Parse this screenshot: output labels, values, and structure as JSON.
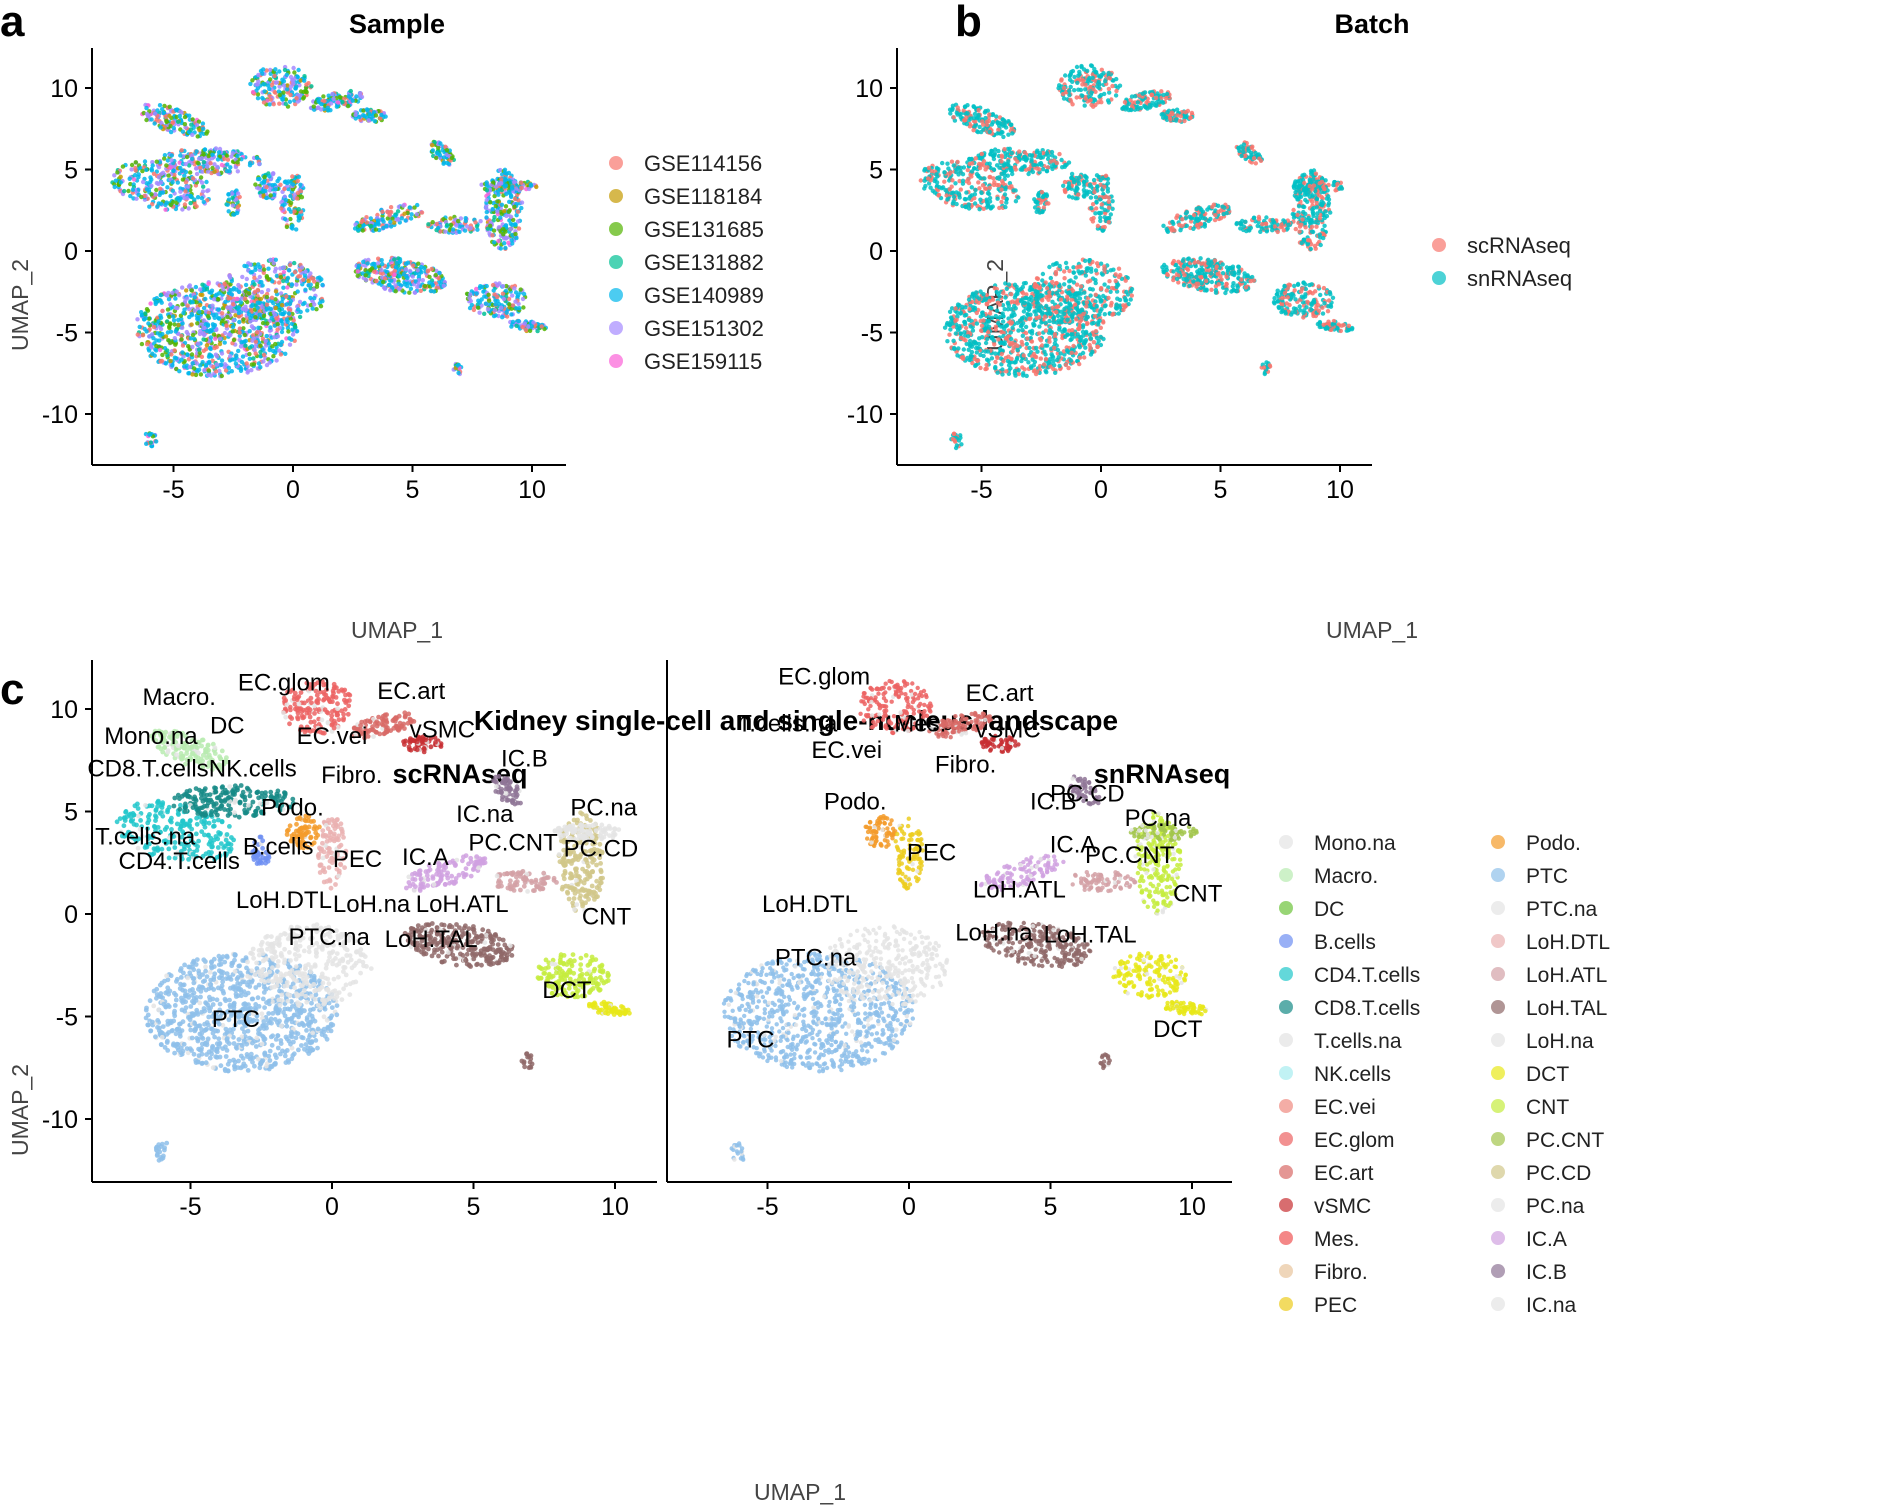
{
  "figure_labels": {
    "a": "a",
    "b": "b",
    "c": "c"
  },
  "suptitle": "Kidney single-cell and single-nucleus landscape",
  "chart_data": [
    {
      "id": "a",
      "type": "scatter",
      "title": "Sample",
      "xlabel": "UMAP_1",
      "ylabel": "UMAP_2",
      "xlim": [
        -8.5,
        11.5
      ],
      "ylim": [
        -13,
        13
      ],
      "xticks": [
        "-5",
        "0",
        "5",
        "10"
      ],
      "yticks": [
        "10",
        "5",
        "0",
        "-5",
        "-10"
      ],
      "legend": [
        {
          "label": "GSE114156",
          "color": "#F8766D"
        },
        {
          "label": "GSE118184",
          "color": "#C49A00"
        },
        {
          "label": "GSE131685",
          "color": "#53B400"
        },
        {
          "label": "GSE131882",
          "color": "#00C094"
        },
        {
          "label": "GSE140989",
          "color": "#00B6EB"
        },
        {
          "label": "GSE151302",
          "color": "#A58AFF"
        },
        {
          "label": "GSE159115",
          "color": "#FB61D7"
        }
      ]
    },
    {
      "id": "b",
      "type": "scatter",
      "title": "Batch",
      "xlabel": "UMAP_1",
      "ylabel": "UMAP_2",
      "xlim": [
        -8.5,
        11.5
      ],
      "ylim": [
        -13,
        13
      ],
      "xticks": [
        "-5",
        "0",
        "5",
        "10"
      ],
      "yticks": [
        "10",
        "5",
        "0",
        "-5",
        "-10"
      ],
      "legend": [
        {
          "label": "scRNAseq",
          "color": "#F8766D"
        },
        {
          "label": "snRNAseq",
          "color": "#00BFC4"
        }
      ]
    },
    {
      "id": "c",
      "type": "scatter",
      "xlabel": "UMAP_1",
      "ylabel": "UMAP_2",
      "xlim": [
        -8.5,
        11.5
      ],
      "ylim": [
        -13,
        13
      ],
      "xticks": [
        "-5",
        "0",
        "5",
        "10"
      ],
      "yticks": [
        "10",
        "5",
        "0",
        "-5",
        "-10"
      ],
      "facets": [
        {
          "title": "scRNAseq",
          "labels": [
            {
              "text": "Macro.",
              "x": -5.4,
              "y": 10.2
            },
            {
              "text": "EC.glom",
              "x": -1.7,
              "y": 10.9
            },
            {
              "text": "EC.art",
              "x": 2.8,
              "y": 10.5
            },
            {
              "text": "DC",
              "x": -3.7,
              "y": 8.8
            },
            {
              "text": "Mono.na",
              "x": -6.4,
              "y": 8.3
            },
            {
              "text": "EC.vei",
              "x": 0.0,
              "y": 8.3
            },
            {
              "text": "vSMC",
              "x": 3.9,
              "y": 8.6
            },
            {
              "text": "CD8.T.cells",
              "x": -6.5,
              "y": 6.7
            },
            {
              "text": "NK.cells",
              "x": -2.8,
              "y": 6.7
            },
            {
              "text": "Fibro.",
              "x": 0.7,
              "y": 6.4
            },
            {
              "text": "IC.B",
              "x": 6.8,
              "y": 7.2
            },
            {
              "text": "Podo.",
              "x": -1.4,
              "y": 4.8
            },
            {
              "text": "IC.na",
              "x": 5.4,
              "y": 4.5
            },
            {
              "text": "PC.na",
              "x": 9.6,
              "y": 4.8
            },
            {
              "text": "T.cells.na",
              "x": -6.6,
              "y": 3.4
            },
            {
              "text": "B.cells",
              "x": -1.9,
              "y": 2.9
            },
            {
              "text": "PEC",
              "x": 0.9,
              "y": 2.3
            },
            {
              "text": "IC.A",
              "x": 3.3,
              "y": 2.4
            },
            {
              "text": "PC.CNT",
              "x": 6.4,
              "y": 3.1
            },
            {
              "text": "PC.CD",
              "x": 9.5,
              "y": 2.8
            },
            {
              "text": "CD4.T.cells",
              "x": -5.4,
              "y": 2.2
            },
            {
              "text": "LoH.DTL",
              "x": -1.7,
              "y": 0.3
            },
            {
              "text": "LoH.na",
              "x": 1.4,
              "y": 0.1
            },
            {
              "text": "LoH.ATL",
              "x": 4.6,
              "y": 0.1
            },
            {
              "text": "CNT",
              "x": 9.7,
              "y": -0.5
            },
            {
              "text": "PTC.na",
              "x": -0.1,
              "y": -1.5
            },
            {
              "text": "LoH.TAL",
              "x": 3.5,
              "y": -1.6
            },
            {
              "text": "DCT",
              "x": 8.3,
              "y": -4.1
            },
            {
              "text": "PTC",
              "x": -3.4,
              "y": -5.5
            }
          ]
        },
        {
          "title": "snRNAseq",
          "labels": [
            {
              "text": "EC.glom",
              "x": -3.0,
              "y": 11.2
            },
            {
              "text": "EC.art",
              "x": 3.2,
              "y": 10.4
            },
            {
              "text": "T.cells.na",
              "x": -4.3,
              "y": 8.9
            },
            {
              "text": "Mes.",
              "x": 0.4,
              "y": 8.9
            },
            {
              "text": "vSMC",
              "x": 3.5,
              "y": 8.6
            },
            {
              "text": "EC.vei",
              "x": -2.2,
              "y": 7.6
            },
            {
              "text": "Fibro.",
              "x": 2.0,
              "y": 6.9
            },
            {
              "text": "PC.CD",
              "x": 6.3,
              "y": 5.5
            },
            {
              "text": "Podo.",
              "x": -1.9,
              "y": 5.1
            },
            {
              "text": "IC.B",
              "x": 5.1,
              "y": 5.1
            },
            {
              "text": "PC.na",
              "x": 8.8,
              "y": 4.3
            },
            {
              "text": "IC.A",
              "x": 5.8,
              "y": 3.0
            },
            {
              "text": "PEC",
              "x": 0.8,
              "y": 2.6
            },
            {
              "text": "PC.CNT",
              "x": 7.8,
              "y": 2.5
            },
            {
              "text": "LoH.ATL",
              "x": 3.9,
              "y": 0.8
            },
            {
              "text": "CNT",
              "x": 10.2,
              "y": 0.6
            },
            {
              "text": "LoH.DTL",
              "x": -3.5,
              "y": 0.1
            },
            {
              "text": "LoH.na",
              "x": 3.0,
              "y": -1.3
            },
            {
              "text": "LoH.TAL",
              "x": 6.4,
              "y": -1.4
            },
            {
              "text": "PTC.na",
              "x": -3.3,
              "y": -2.5
            },
            {
              "text": "DCT",
              "x": 9.5,
              "y": -6.0
            },
            {
              "text": "PTC",
              "x": -5.6,
              "y": -6.5
            }
          ]
        }
      ],
      "legend": [
        {
          "label": "Mono.na",
          "color": "#e4e4e4"
        },
        {
          "label": "Macro.",
          "color": "#b8ebb0"
        },
        {
          "label": "DC",
          "color": "#6cc33a"
        },
        {
          "label": "B.cells",
          "color": "#6e8ff2"
        },
        {
          "label": "CD4.T.cells",
          "color": "#21c7cb"
        },
        {
          "label": "CD8.T.cells",
          "color": "#158a86"
        },
        {
          "label": "T.cells.na",
          "color": "#e2e2e2"
        },
        {
          "label": "NK.cells",
          "color": "#a7ecef"
        },
        {
          "label": "EC.vei",
          "color": "#f08a80"
        },
        {
          "label": "EC.glom",
          "color": "#ec6363"
        },
        {
          "label": "EC.art",
          "color": "#d86a66"
        },
        {
          "label": "vSMC",
          "color": "#c82f32"
        },
        {
          "label": "Mes.",
          "color": "#f05454"
        },
        {
          "label": "Fibro.",
          "color": "#e8c59c"
        },
        {
          "label": "PEC",
          "color": "#eccc1e"
        },
        {
          "label": "Podo.",
          "color": "#f39b2a"
        },
        {
          "label": "PTC",
          "color": "#8ec0ea"
        },
        {
          "label": "PTC.na",
          "color": "#e4e4e4"
        },
        {
          "label": "LoH.DTL",
          "color": "#eab1b1"
        },
        {
          "label": "LoH.ATL",
          "color": "#d3a1a6"
        },
        {
          "label": "LoH.TAL",
          "color": "#8f6868"
        },
        {
          "label": "LoH.na",
          "color": "#e4e4e4"
        },
        {
          "label": "DCT",
          "color": "#e8e819"
        },
        {
          "label": "CNT",
          "color": "#c5ec3e"
        },
        {
          "label": "PC.CNT",
          "color": "#a2c54b"
        },
        {
          "label": "PC.CD",
          "color": "#d1c78a"
        },
        {
          "label": "PC.na",
          "color": "#e4e4e4"
        },
        {
          "label": "IC.A",
          "color": "#d0a1e0"
        },
        {
          "label": "IC.B",
          "color": "#8f7596"
        },
        {
          "label": "IC.na",
          "color": "#e4e4e4"
        }
      ]
    }
  ]
}
